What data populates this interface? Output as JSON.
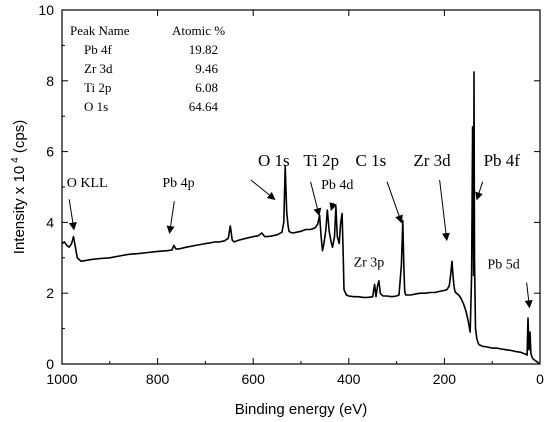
{
  "chart_data": {
    "type": "line",
    "xlabel": "Binding energy (eV)",
    "ylabel_main": "Intensity x 10",
    "ylabel_exp": "4",
    "ylabel_unit": " (cps)",
    "xlim": [
      1000,
      0
    ],
    "ylim": [
      0,
      10
    ],
    "x_reversed": true,
    "x_ticks": [
      1000,
      800,
      600,
      400,
      200,
      0
    ],
    "y_ticks": [
      0,
      2,
      4,
      6,
      8,
      10
    ],
    "series": [
      {
        "color": "#000000",
        "x": [
          1000,
          995,
          990,
          985,
          980,
          976,
          972,
          968,
          960,
          940,
          920,
          900,
          880,
          860,
          840,
          820,
          800,
          780,
          770,
          766,
          762,
          755,
          740,
          720,
          700,
          690,
          680,
          670,
          660,
          652,
          648,
          644,
          640,
          630,
          615,
          600,
          590,
          582,
          576,
          570,
          560,
          550,
          540,
          536,
          533,
          530,
          527,
          525,
          522,
          518,
          510,
          500,
          490,
          480,
          470,
          465,
          461,
          458,
          455,
          452,
          448,
          445,
          441,
          437,
          434,
          430,
          427,
          424,
          420,
          417,
          414,
          412,
          410,
          405,
          400,
          390,
          380,
          370,
          360,
          350,
          346,
          343,
          340,
          337,
          334,
          331,
          328,
          320,
          310,
          300,
          295,
          290,
          287,
          285,
          283,
          281,
          279,
          270,
          260,
          250,
          240,
          230,
          220,
          210,
          200,
          195,
          190,
          187,
          184,
          182,
          180,
          178,
          175,
          170,
          165,
          160,
          155,
          150,
          146,
          143,
          141,
          139,
          138,
          137,
          136,
          135,
          132,
          128,
          120,
          110,
          100,
          90,
          80,
          70,
          60,
          50,
          40,
          35,
          30,
          27,
          25,
          23,
          21,
          19,
          17,
          15,
          10,
          5,
          2
        ],
        "y": [
          3.4,
          3.45,
          3.35,
          3.3,
          3.4,
          3.6,
          3.3,
          3.0,
          2.9,
          2.95,
          2.98,
          3.0,
          3.05,
          3.1,
          3.12,
          3.15,
          3.18,
          3.2,
          3.22,
          3.35,
          3.25,
          3.25,
          3.3,
          3.35,
          3.4,
          3.42,
          3.45,
          3.45,
          3.48,
          3.55,
          3.9,
          3.5,
          3.45,
          3.5,
          3.55,
          3.6,
          3.62,
          3.7,
          3.6,
          3.6,
          3.62,
          3.65,
          3.72,
          4.0,
          5.6,
          4.3,
          3.9,
          3.75,
          3.72,
          3.7,
          3.72,
          3.75,
          3.8,
          3.8,
          3.85,
          3.95,
          4.2,
          3.6,
          3.2,
          3.4,
          3.8,
          4.35,
          3.75,
          3.45,
          3.3,
          3.6,
          4.45,
          3.6,
          3.4,
          4.0,
          4.25,
          3.2,
          2.1,
          1.95,
          1.92,
          1.9,
          1.9,
          1.88,
          1.88,
          1.9,
          2.25,
          1.9,
          2.2,
          2.35,
          2.0,
          1.95,
          1.92,
          1.92,
          1.9,
          1.92,
          1.95,
          2.8,
          4.05,
          2.8,
          2.05,
          1.95,
          1.95,
          1.95,
          1.98,
          2.0,
          2.0,
          2.02,
          2.02,
          2.05,
          2.08,
          2.1,
          2.2,
          2.5,
          2.9,
          2.5,
          2.2,
          2.05,
          2.0,
          1.95,
          1.85,
          1.7,
          1.5,
          1.2,
          0.9,
          2.5,
          6.7,
          2.5,
          8.25,
          3.0,
          2.0,
          1.0,
          0.7,
          0.55,
          0.5,
          0.48,
          0.45,
          0.45,
          0.42,
          0.4,
          0.38,
          0.35,
          0.33,
          0.3,
          0.28,
          0.25,
          1.3,
          0.4,
          0.9,
          0.3,
          0.2,
          0.15,
          0.1,
          0.05,
          0.02
        ]
      }
    ],
    "table": {
      "header": [
        "Peak Name",
        "Atomic %"
      ],
      "rows": [
        [
          "Pb 4f",
          "19.82"
        ],
        [
          "Zr 3d",
          "9.46"
        ],
        [
          "Ti 2p",
          "6.08"
        ],
        [
          "O 1s",
          "64.64"
        ]
      ]
    },
    "annotations": [
      {
        "id": "o-kll",
        "text": "O KLL",
        "x": 990,
        "y": 5.0,
        "size": "medium",
        "arrow_tail": [
          985,
          4.65
        ],
        "arrow_head": [
          975,
          3.8
        ]
      },
      {
        "id": "pb-4p",
        "text": "Pb 4p",
        "x": 790,
        "y": 5.0,
        "size": "medium",
        "arrow_tail": [
          765,
          4.6
        ],
        "arrow_head": [
          775,
          3.7
        ]
      },
      {
        "id": "o-1s",
        "text": "O 1s",
        "x": 590,
        "y": 5.6,
        "size": "large",
        "arrow_tail": [
          605,
          5.2
        ],
        "arrow_head": [
          555,
          4.65
        ]
      },
      {
        "id": "ti-2p",
        "text": "Ti 2p",
        "x": 495,
        "y": 5.6,
        "size": "large",
        "arrow_tail": [
          480,
          5.15
        ],
        "arrow_head": [
          462,
          4.2
        ]
      },
      {
        "id": "pb-4d",
        "text": "Pb 4d",
        "x": 458,
        "y": 4.95,
        "size": "medium",
        "arrow_tail": [
          432,
          4.55
        ],
        "arrow_head": [
          437,
          4.35
        ]
      },
      {
        "id": "c-1s",
        "text": "C 1s",
        "x": 386,
        "y": 5.6,
        "size": "large",
        "arrow_tail": [
          320,
          5.15
        ],
        "arrow_head": [
          290,
          4.0
        ]
      },
      {
        "id": "zr-3d",
        "text": "Zr 3d",
        "x": 265,
        "y": 5.6,
        "size": "large",
        "arrow_tail": [
          210,
          5.2
        ],
        "arrow_head": [
          195,
          3.5
        ]
      },
      {
        "id": "pb-4f",
        "text": "Pb 4f",
        "x": 118,
        "y": 5.6,
        "size": "large",
        "arrow_tail": [
          120,
          5.15
        ],
        "arrow_head": [
          132,
          4.65
        ]
      },
      {
        "id": "zr-3p",
        "text": "Zr 3p",
        "x": 390,
        "y": 2.75,
        "size": "medium",
        "arrow_tail": null,
        "arrow_head": null
      },
      {
        "id": "pb-5d",
        "text": "Pb 5d",
        "x": 110,
        "y": 2.7,
        "size": "medium",
        "arrow_tail": [
          28,
          2.3
        ],
        "arrow_head": [
          22,
          1.6
        ]
      }
    ]
  }
}
